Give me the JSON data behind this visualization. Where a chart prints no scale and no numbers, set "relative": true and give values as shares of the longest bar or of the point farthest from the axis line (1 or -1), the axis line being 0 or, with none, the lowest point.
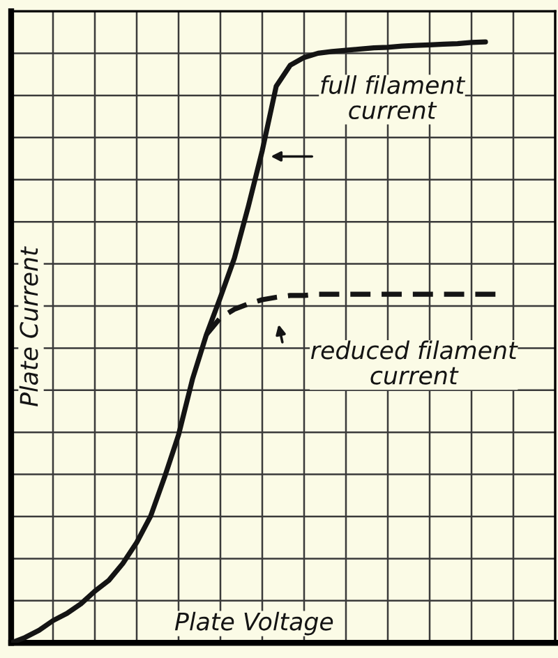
{
  "chart_data": {
    "type": "line",
    "relative": true,
    "xlabel": "Plate Voltage",
    "ylabel": "Plate Current",
    "grid": true,
    "marker": "none",
    "categories": [
      null,
      null,
      null,
      null,
      null,
      null,
      null,
      null,
      null,
      null,
      null,
      null,
      null,
      null,
      null,
      null,
      null,
      null,
      null,
      null,
      null,
      null,
      null,
      null,
      null,
      null,
      null,
      null,
      null,
      null,
      null,
      null,
      null,
      null,
      null,
      null,
      null,
      null,
      null,
      null
    ],
    "series": [
      {
        "color": "#141414",
        "line_style": "solid",
        "values": [
          0,
          0.009,
          0.021,
          0.037,
          0.049,
          0.065,
          0.086,
          0.104,
          0.132,
          0.167,
          0.211,
          0.276,
          0.346,
          0.439,
          0.513,
          0.575,
          0.64,
          0.726,
          0.819,
          0.926,
          0.961,
          0.974,
          0.981,
          0.984,
          0.986,
          0.988,
          0.99,
          0.991,
          0.993,
          0.994,
          0.995,
          0.996,
          0.997,
          0.999,
          1.0,
          null,
          null,
          null,
          null,
          null
        ]
      },
      {
        "color": "#141414",
        "line_style": "dashed",
        "values": [
          null,
          null,
          null,
          null,
          null,
          null,
          null,
          null,
          null,
          null,
          null,
          null,
          null,
          null,
          0.513,
          0.541,
          0.555,
          0.564,
          0.571,
          0.575,
          0.578,
          0.578,
          0.58,
          0.58,
          0.58,
          0.58,
          0.58,
          0.58,
          0.58,
          0.58,
          0.58,
          0.58,
          0.58,
          0.58,
          0.58,
          0.58,
          null,
          null,
          null,
          null
        ]
      }
    ],
    "annotations": [
      "full filament current",
      "reduced filament current"
    ]
  }
}
